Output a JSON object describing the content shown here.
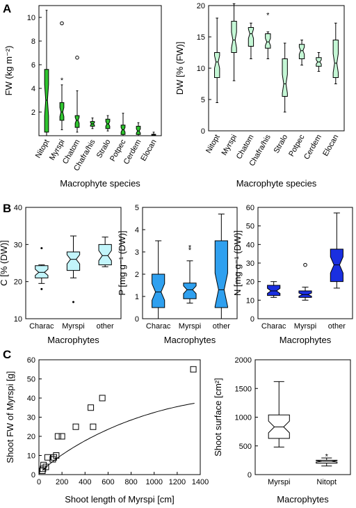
{
  "panels": {
    "A": "A",
    "B": "B",
    "C": "C"
  },
  "chart_data": [
    {
      "id": "A-left",
      "type": "box",
      "xlabel": "Macrophyte species",
      "ylabel": "FW (kg m⁻²)",
      "ylim": [
        0,
        11
      ],
      "yticks": [
        2,
        4,
        6,
        8,
        10
      ],
      "color": "#2fc42f",
      "categories": [
        "Nitopt",
        "Myrspi",
        "Chatom",
        "Chafra/his",
        "Stralo",
        "Potpec",
        "Cerdem",
        "Elocan"
      ],
      "boxes": [
        {
          "whislo": 0.0,
          "q1": 0.3,
          "med": 3.0,
          "q3": 5.6,
          "whishi": 10.6,
          "outliers": []
        },
        {
          "whislo": 0.5,
          "q1": 1.3,
          "med": 2.0,
          "q3": 2.8,
          "whishi": 4.3,
          "outliers": [
            9.5
          ],
          "stars": [
            4.7
          ]
        },
        {
          "whislo": 0.3,
          "q1": 0.7,
          "med": 1.3,
          "q3": 1.7,
          "whishi": 3.8,
          "outliers": [
            6.6
          ]
        },
        {
          "whislo": 0.6,
          "q1": 0.8,
          "med": 1.0,
          "q3": 1.2,
          "whishi": 1.5,
          "outliers": []
        },
        {
          "whislo": 0.4,
          "q1": 0.6,
          "med": 1.0,
          "q3": 1.4,
          "whishi": 1.7,
          "outliers": []
        },
        {
          "whislo": 0.0,
          "q1": 0.1,
          "med": 0.5,
          "q3": 0.9,
          "whishi": 1.9,
          "outliers": []
        },
        {
          "whislo": 0.0,
          "q1": 0.1,
          "med": 0.4,
          "q3": 0.8,
          "whishi": 1.1,
          "outliers": []
        },
        {
          "whislo": 0.0,
          "q1": 0.02,
          "med": 0.08,
          "q3": 0.12,
          "whishi": 0.3,
          "outliers": []
        }
      ]
    },
    {
      "id": "A-right",
      "type": "box",
      "xlabel": "Macrophyte species",
      "ylabel": "DW [% (FW)]",
      "ylim": [
        0,
        20
      ],
      "yticks": [
        0,
        5,
        10,
        15,
        20
      ],
      "color": "#c4f7d5",
      "categories": [
        "Nitopt",
        "Myrspi",
        "Chatom",
        "Chafra/his",
        "Stralo",
        "Potpec",
        "Cerdem",
        "Elocan"
      ],
      "boxes": [
        {
          "whislo": 4.5,
          "q1": 8.5,
          "med": 11.0,
          "q3": 12.5,
          "whishi": 18.0,
          "outliers": []
        },
        {
          "whislo": 8.0,
          "q1": 12.5,
          "med": 14.5,
          "q3": 17.5,
          "whishi": 20.3,
          "outliers": []
        },
        {
          "whislo": 11.5,
          "q1": 13.5,
          "med": 15.5,
          "q3": 16.5,
          "whishi": 17.2,
          "outliers": []
        },
        {
          "whislo": 11.5,
          "q1": 13.2,
          "med": 14.2,
          "q3": 15.5,
          "whishi": 15.8,
          "outliers": [],
          "stars": [
            18.5
          ]
        },
        {
          "whislo": 3.0,
          "q1": 5.5,
          "med": 7.5,
          "q3": 11.5,
          "whishi": 14.0,
          "outliers": []
        },
        {
          "whislo": 10.5,
          "q1": 11.5,
          "med": 12.8,
          "q3": 13.8,
          "whishi": 14.5,
          "outliers": []
        },
        {
          "whislo": 9.5,
          "q1": 10.3,
          "med": 11.0,
          "q3": 11.7,
          "whishi": 12.5,
          "outliers": []
        },
        {
          "whislo": 7.5,
          "q1": 8.5,
          "med": 10.8,
          "q3": 14.5,
          "whishi": 17.2,
          "outliers": []
        }
      ]
    },
    {
      "id": "B-C",
      "type": "box",
      "xlabel": "Macrophytes",
      "ylabel": "C [% (DW)]",
      "ylim": [
        10,
        40
      ],
      "yticks": [
        10,
        20,
        30,
        40
      ],
      "color": "#c2f5fb",
      "categories": [
        "Charac",
        "Myrspi",
        "other"
      ],
      "boxes": [
        {
          "whislo": 19.5,
          "q1": 21.0,
          "med": 22.5,
          "q3": 24.3,
          "whishi": 24.5,
          "outliers": [],
          "dots": [
            29.0,
            18.0
          ]
        },
        {
          "whislo": 21.0,
          "q1": 23.0,
          "med": 26.0,
          "q3": 28.0,
          "whishi": 32.3,
          "outliers": [],
          "dots": [
            14.5
          ]
        },
        {
          "whislo": 24.0,
          "q1": 24.5,
          "med": 27.0,
          "q3": 30.0,
          "whishi": 32.0,
          "outliers": []
        }
      ]
    },
    {
      "id": "B-P",
      "type": "box",
      "xlabel": "Macrophytes",
      "ylabel": "P [mg g⁻¹ (DW)]",
      "ylim": [
        0,
        5
      ],
      "yticks": [
        0,
        1,
        2,
        3,
        4,
        5
      ],
      "color": "#2fa0ef",
      "categories": [
        "Charac",
        "Myrspi",
        "other"
      ],
      "boxes": [
        {
          "whislo": 0.0,
          "q1": 0.5,
          "med": 1.2,
          "q3": 2.0,
          "whishi": 3.5,
          "outliers": []
        },
        {
          "whislo": 0.7,
          "q1": 0.9,
          "med": 1.3,
          "q3": 1.6,
          "whishi": 2.6,
          "outliers": [],
          "stars": [
            3.1,
            3.2
          ]
        },
        {
          "whislo": 0.0,
          "q1": 0.5,
          "med": 1.3,
          "q3": 3.5,
          "whishi": 4.7,
          "outliers": []
        }
      ]
    },
    {
      "id": "B-N",
      "type": "box",
      "xlabel": "Macrophytes",
      "ylabel": "N [mg g⁻¹ (DW)]",
      "ylim": [
        0,
        60
      ],
      "yticks": [
        0,
        10,
        20,
        30,
        40,
        50,
        60
      ],
      "color": "#1a2fe0",
      "categories": [
        "Charac",
        "Myrspi",
        "other"
      ],
      "boxes": [
        {
          "whislo": 11.5,
          "q1": 12.5,
          "med": 15.0,
          "q3": 18.0,
          "whishi": 20.0,
          "outliers": []
        },
        {
          "whislo": 10.0,
          "q1": 11.5,
          "med": 13.0,
          "q3": 15.0,
          "whishi": 17.0,
          "outliers": [
            29.0
          ]
        },
        {
          "whislo": 16.5,
          "q1": 20.0,
          "med": 29.0,
          "q3": 37.5,
          "whishi": 57.0,
          "outliers": []
        }
      ]
    },
    {
      "id": "C-left",
      "type": "scatter",
      "xlabel": "Shoot length of Myrspi [cm]",
      "ylabel": "Shoot FW of Myrspi [g]",
      "xlim": [
        0,
        1400
      ],
      "ylim": [
        0,
        60
      ],
      "xticks": [
        0,
        200,
        400,
        600,
        800,
        1000,
        1200,
        1400
      ],
      "yticks": [
        0,
        10,
        20,
        30,
        40,
        50,
        60
      ],
      "points": [
        [
          30,
          2
        ],
        [
          35,
          3
        ],
        [
          40,
          5
        ],
        [
          60,
          4
        ],
        [
          75,
          9
        ],
        [
          120,
          8
        ],
        [
          130,
          9
        ],
        [
          150,
          10
        ],
        [
          165,
          20
        ],
        [
          200,
          20
        ],
        [
          320,
          25
        ],
        [
          450,
          35
        ],
        [
          470,
          25
        ],
        [
          550,
          40
        ],
        [
          1340,
          55
        ]
      ],
      "fit": {
        "form": "power",
        "a": 0.12,
        "b": 0.85,
        "x": [
          30,
          1350
        ]
      }
    },
    {
      "id": "C-right",
      "type": "box",
      "xlabel": "Macrophytes",
      "ylabel": "Shoot surface [cm²]",
      "ylim": [
        0,
        2000
      ],
      "yticks": [
        0,
        500,
        1000,
        1500,
        2000
      ],
      "color": "#ffffff",
      "categories": [
        "Myrspi",
        "Nitopt"
      ],
      "boxes": [
        {
          "whislo": 480,
          "q1": 630,
          "med": 830,
          "q3": 1040,
          "whishi": 1620,
          "outliers": []
        },
        {
          "whislo": 150,
          "q1": 200,
          "med": 230,
          "q3": 250,
          "whishi": 290,
          "outliers": [],
          "stars": [
            320
          ]
        }
      ]
    }
  ]
}
